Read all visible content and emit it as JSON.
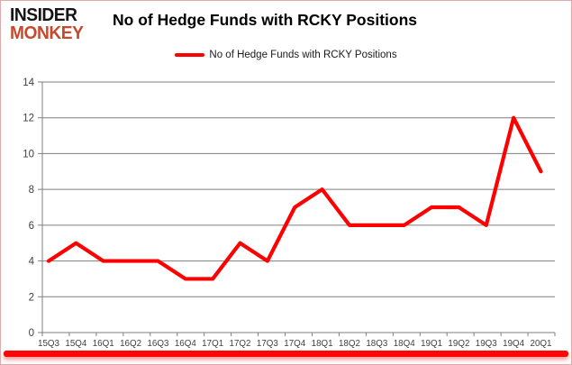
{
  "brand": {
    "line1": "INSIDER",
    "line2": "MONKEY",
    "line1_color": "#141414",
    "line2_color": "#c7492c"
  },
  "title": "No of Hedge Funds with RCKY Positions",
  "legend": {
    "label": "No of Hedge Funds with RCKY Positions",
    "swatch_color": "#fe0000"
  },
  "chart_data": {
    "type": "line",
    "title": "No of Hedge Funds with RCKY Positions",
    "categories": [
      "15Q3",
      "15Q4",
      "16Q1",
      "16Q2",
      "16Q3",
      "16Q4",
      "17Q1",
      "17Q2",
      "17Q3",
      "17Q4",
      "18Q1",
      "18Q2",
      "18Q3",
      "18Q4",
      "19Q1",
      "19Q2",
      "19Q3",
      "19Q4",
      "20Q1"
    ],
    "series": [
      {
        "name": "No of Hedge Funds with RCKY Positions",
        "values": [
          4,
          5,
          4,
          4,
          4,
          3,
          3,
          5,
          4,
          7,
          8,
          6,
          6,
          6,
          7,
          7,
          6,
          12,
          9
        ],
        "color": "#fe0000"
      }
    ],
    "xlabel": "",
    "ylabel": "",
    "ylim": [
      0,
      14
    ],
    "ytick_step": 2,
    "grid": true,
    "legend_position": "top-center"
  },
  "colors": {
    "gridline": "#7f7f7f",
    "axis": "#7f7f7f",
    "tick_label": "#3f3f3f",
    "frame_border": "#ddabab",
    "bottom_bar": "#fb0707"
  }
}
